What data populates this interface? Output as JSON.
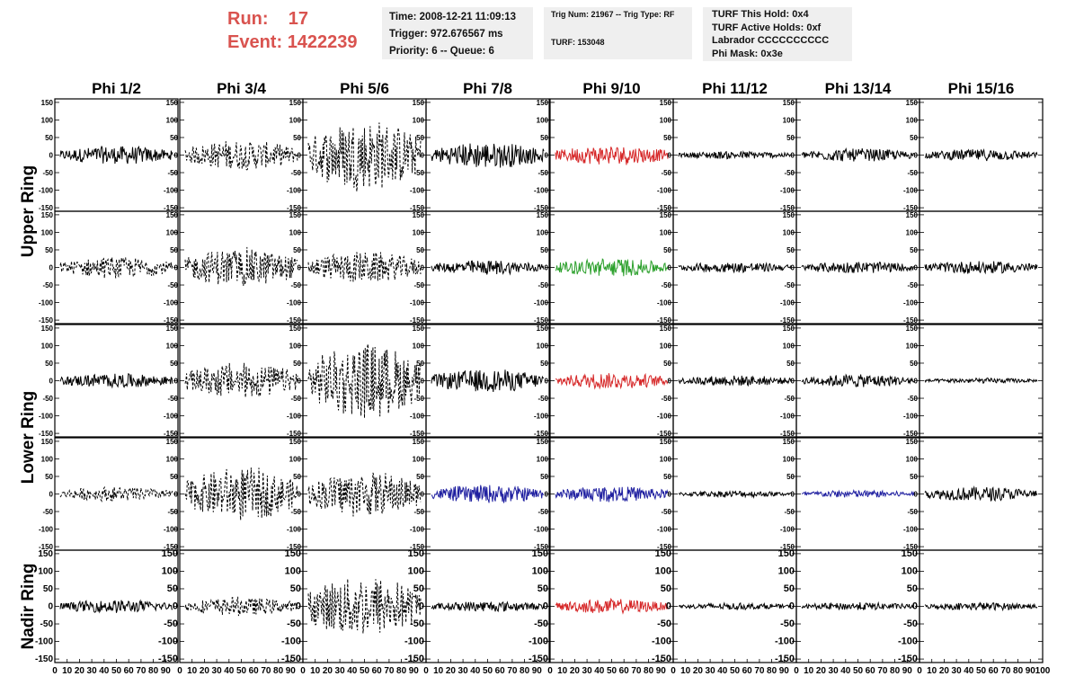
{
  "header": {
    "run_label": "Run:",
    "run_value": "17",
    "event_label": "Event:",
    "event_value": "1422239",
    "time": "Time: 2008-12-21 11:09:13",
    "trigger": "Trigger: 972.676567 ms",
    "priority": "Priority: 6 -- Queue: 6",
    "trig_num": "Trig Num: 21967 -- Trig Type: RF",
    "turf": "TURF: 153048",
    "turf_hold": "TURF This Hold: 0x4",
    "turf_active": "TURF Active Holds: 0xf",
    "labrador": "Labrador CCCCCCCCCC",
    "phi_mask": "Phi Mask: 0x3e"
  },
  "colors": {
    "header_red": "#d9534f",
    "trace_black": "#000000",
    "trace_red": "#d62728",
    "trace_green": "#2ca02c",
    "trace_blue": "#1f1fa0",
    "info_box": "#efefef"
  },
  "chart_data": {
    "type": "line",
    "columns": [
      "Phi 1/2",
      "Phi 3/4",
      "Phi 5/6",
      "Phi 7/8",
      "Phi 9/10",
      "Phi 11/12",
      "Phi 13/14",
      "Phi 15/16"
    ],
    "row_groups": [
      {
        "label": "Upper Ring",
        "rows": [
          0,
          1
        ]
      },
      {
        "label": "Lower Ring",
        "rows": [
          2,
          3
        ]
      },
      {
        "label": "Nadir Ring",
        "rows": [
          4
        ]
      }
    ],
    "ylim": [
      -160,
      160
    ],
    "xlim": [
      0,
      100
    ],
    "y_ticks": [
      150,
      100,
      50,
      0,
      -50,
      -100,
      -150
    ],
    "y_ticks_nadir": [
      150,
      100,
      50,
      0,
      -50,
      -100,
      -150
    ],
    "x_ticks": [
      0,
      10,
      20,
      30,
      40,
      50,
      60,
      70,
      80,
      90,
      100
    ],
    "x_tick_label_row": "0 10 20 30 40 50 60 70 80 90 100",
    "panels": [
      [
        {
          "amp": 28,
          "style": "solid",
          "color": "black"
        },
        {
          "amp": 45,
          "style": "dashed",
          "color": "black"
        },
        {
          "amp": 110,
          "style": "dashed",
          "color": "black"
        },
        {
          "amp": 40,
          "style": "solid",
          "color": "black"
        },
        {
          "amp": 30,
          "style": "solid",
          "color": "red"
        },
        {
          "amp": 12,
          "style": "solid",
          "color": "black"
        },
        {
          "amp": 20,
          "style": "solid",
          "color": "black"
        },
        {
          "amp": 18,
          "style": "solid",
          "color": "black"
        }
      ],
      [
        {
          "amp": 32,
          "style": "dashed",
          "color": "black"
        },
        {
          "amp": 60,
          "style": "dashed",
          "color": "black"
        },
        {
          "amp": 48,
          "style": "dashed",
          "color": "black"
        },
        {
          "amp": 22,
          "style": "solid",
          "color": "black"
        },
        {
          "amp": 28,
          "style": "solid",
          "color": "green"
        },
        {
          "amp": 16,
          "style": "solid",
          "color": "black"
        },
        {
          "amp": 18,
          "style": "solid",
          "color": "black"
        },
        {
          "amp": 20,
          "style": "solid",
          "color": "black"
        }
      ],
      [
        {
          "amp": 22,
          "style": "solid",
          "color": "black"
        },
        {
          "amp": 55,
          "style": "dashed",
          "color": "black"
        },
        {
          "amp": 115,
          "style": "dashed",
          "color": "black"
        },
        {
          "amp": 35,
          "style": "solid",
          "color": "black"
        },
        {
          "amp": 25,
          "style": "solid",
          "color": "red"
        },
        {
          "amp": 16,
          "style": "solid",
          "color": "black"
        },
        {
          "amp": 20,
          "style": "solid",
          "color": "black"
        },
        {
          "amp": 8,
          "style": "solid",
          "color": "black"
        }
      ],
      [
        {
          "amp": 22,
          "style": "dashed",
          "color": "black"
        },
        {
          "amp": 80,
          "style": "dashed",
          "color": "black"
        },
        {
          "amp": 70,
          "style": "dashed",
          "color": "black"
        },
        {
          "amp": 28,
          "style": "solid",
          "color": "blue"
        },
        {
          "amp": 24,
          "style": "solid",
          "color": "blue"
        },
        {
          "amp": 10,
          "style": "solid",
          "color": "black"
        },
        {
          "amp": 12,
          "style": "solid",
          "color": "blue"
        },
        {
          "amp": 22,
          "style": "solid",
          "color": "black"
        }
      ],
      [
        {
          "amp": 20,
          "style": "solid",
          "color": "black"
        },
        {
          "amp": 28,
          "style": "dashed",
          "color": "black"
        },
        {
          "amp": 95,
          "style": "dashed",
          "color": "black"
        },
        {
          "amp": 16,
          "style": "solid",
          "color": "black"
        },
        {
          "amp": 22,
          "style": "solid",
          "color": "red"
        },
        {
          "amp": 10,
          "style": "solid",
          "color": "black"
        },
        {
          "amp": 12,
          "style": "solid",
          "color": "black"
        },
        {
          "amp": 12,
          "style": "solid",
          "color": "black"
        }
      ]
    ]
  }
}
